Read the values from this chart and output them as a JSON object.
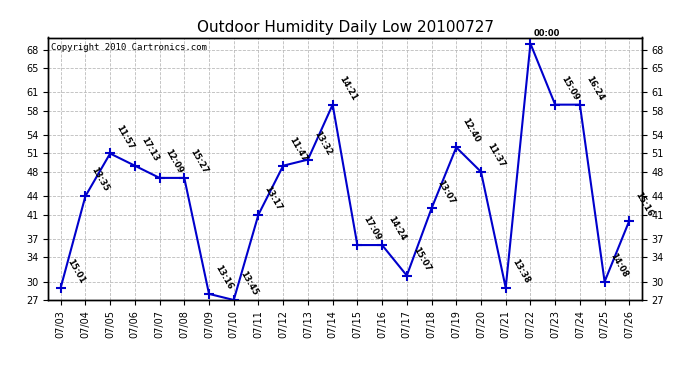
{
  "title": "Outdoor Humidity Daily Low 20100727",
  "copyright": "Copyright 2010 Cartronics.com",
  "x_labels": [
    "07/03",
    "07/04",
    "07/05",
    "07/06",
    "07/07",
    "07/08",
    "07/09",
    "07/10",
    "07/11",
    "07/12",
    "07/13",
    "07/14",
    "07/15",
    "07/16",
    "07/17",
    "07/18",
    "07/19",
    "07/20",
    "07/21",
    "07/22",
    "07/23",
    "07/24",
    "07/25",
    "07/26"
  ],
  "y_values": [
    29,
    44,
    51,
    49,
    47,
    47,
    28,
    27,
    41,
    49,
    50,
    59,
    36,
    36,
    31,
    42,
    52,
    48,
    29,
    69,
    59,
    59,
    30,
    40
  ],
  "time_labels": [
    "15:01",
    "13:35",
    "11:57",
    "17:13",
    "12:09",
    "15:27",
    "13:16",
    "13:45",
    "13:17",
    "11:47",
    "13:32",
    "14:21",
    "17:09",
    "14:24",
    "15:07",
    "13:07",
    "12:40",
    "11:37",
    "13:38",
    "00:00",
    "15:09",
    "16:24",
    "14:08",
    "15:16"
  ],
  "line_color": "#0000cc",
  "marker_color": "#0000cc",
  "background_color": "#ffffff",
  "grid_color": "#bbbbbb",
  "ylim_min": 27,
  "ylim_max": 70,
  "yticks": [
    27,
    30,
    34,
    37,
    41,
    44,
    48,
    51,
    54,
    58,
    61,
    65,
    68
  ],
  "title_fontsize": 11,
  "label_fontsize": 7,
  "time_label_fontsize": 6,
  "copyright_fontsize": 6.5
}
